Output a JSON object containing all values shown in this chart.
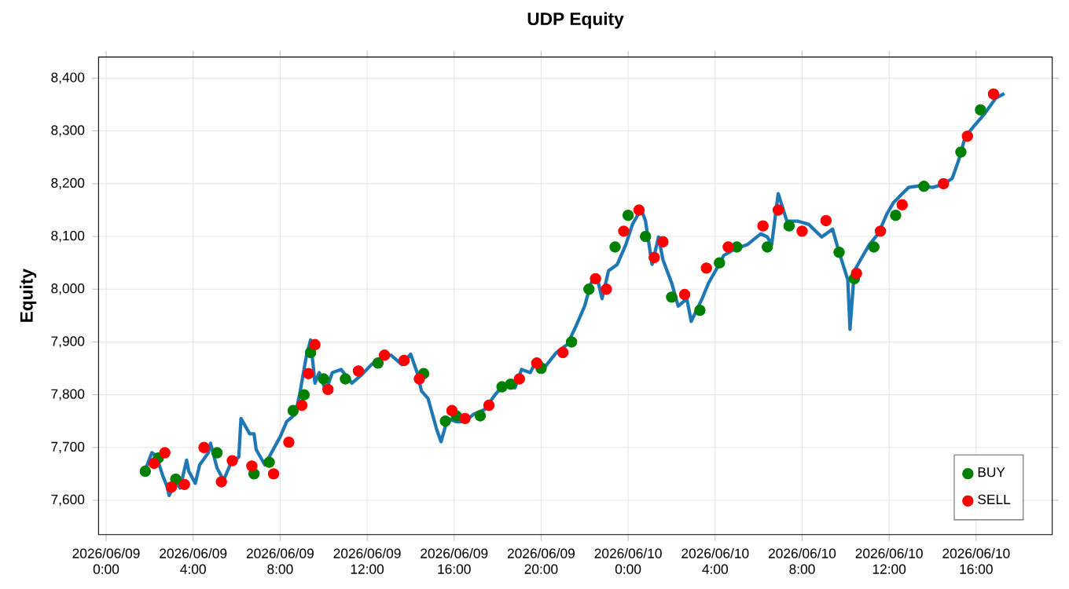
{
  "chart_data": {
    "type": "line",
    "title": "UDP Equity",
    "ylabel": "Equity",
    "xlim": [
      "2026-06-08T23:39",
      "2026-06-10T19:30"
    ],
    "ylim": [
      7535,
      8440
    ],
    "xticks": [
      {
        "value": "2026-06-09T00:00",
        "label": "2026/06/09 0:00"
      },
      {
        "value": "2026-06-09T04:00",
        "label": "2026/06/09 4:00"
      },
      {
        "value": "2026-06-09T08:00",
        "label": "2026/06/09 8:00"
      },
      {
        "value": "2026-06-09T12:00",
        "label": "2026/06/09 12:00"
      },
      {
        "value": "2026-06-09T16:00",
        "label": "2026/06/09 16:00"
      },
      {
        "value": "2026-06-09T20:00",
        "label": "2026/06/09 20:00"
      },
      {
        "value": "2026-06-10T00:00",
        "label": "2026/06/10 0:00"
      },
      {
        "value": "2026-06-10T04:00",
        "label": "2026/06/10 4:00"
      },
      {
        "value": "2026-06-10T08:00",
        "label": "2026/06/10 8:00"
      },
      {
        "value": "2026-06-10T12:00",
        "label": "2026/06/10 12:00"
      },
      {
        "value": "2026-06-10T16:00",
        "label": "2026/06/10 16:00"
      }
    ],
    "yticks": [
      {
        "value": 7600,
        "label": "7,600"
      },
      {
        "value": 7700,
        "label": "7,700"
      },
      {
        "value": 7800,
        "label": "7,800"
      },
      {
        "value": 7900,
        "label": "7,900"
      },
      {
        "value": 8000,
        "label": "8,000"
      },
      {
        "value": 8100,
        "label": "8,100"
      },
      {
        "value": 8200,
        "label": "8,200"
      },
      {
        "value": 8300,
        "label": "8,300"
      },
      {
        "value": 8400,
        "label": "8,400"
      }
    ],
    "grid": true,
    "legend": "bottom right",
    "series": [
      {
        "type": "line",
        "marker": "none",
        "color": "#1f77b4",
        "x": [
          "2026-06-09T01:50",
          "2026-06-09T02:06",
          "2026-06-09T02:18",
          "2026-06-09T02:36",
          "2026-06-09T02:48",
          "2026-06-09T02:54",
          "2026-06-09T03:12",
          "2026-06-09T03:24",
          "2026-06-09T03:42",
          "2026-06-09T03:48",
          "2026-06-09T04:06",
          "2026-06-09T04:18",
          "2026-06-09T04:42",
          "2026-06-09T04:48",
          "2026-06-09T05:06",
          "2026-06-09T05:24",
          "2026-06-09T05:42",
          "2026-06-09T06:06",
          "2026-06-09T06:12",
          "2026-06-09T06:36",
          "2026-06-09T06:48",
          "2026-06-09T06:54",
          "2026-06-09T07:18",
          "2026-06-09T07:36",
          "2026-06-09T08:00",
          "2026-06-09T08:18",
          "2026-06-09T08:42",
          "2026-06-09T08:54",
          "2026-06-09T09:12",
          "2026-06-09T09:24",
          "2026-06-09T09:36",
          "2026-06-09T09:48",
          "2026-06-09T10:06",
          "2026-06-09T10:24",
          "2026-06-09T10:48",
          "2026-06-09T11:18",
          "2026-06-09T11:42",
          "2026-06-09T12:12",
          "2026-06-09T12:42",
          "2026-06-09T13:06",
          "2026-06-09T13:36",
          "2026-06-09T14:00",
          "2026-06-09T14:18",
          "2026-06-09T14:30",
          "2026-06-09T14:48",
          "2026-06-09T15:12",
          "2026-06-09T15:24",
          "2026-06-09T15:42",
          "2026-06-09T16:06",
          "2026-06-09T16:30",
          "2026-06-09T16:54",
          "2026-06-09T17:24",
          "2026-06-09T17:54",
          "2026-06-09T18:18",
          "2026-06-09T18:48",
          "2026-06-09T19:06",
          "2026-06-09T19:30",
          "2026-06-09T19:48",
          "2026-06-09T20:12",
          "2026-06-09T20:42",
          "2026-06-09T21:12",
          "2026-06-09T21:36",
          "2026-06-09T22:00",
          "2026-06-09T22:18",
          "2026-06-09T22:36",
          "2026-06-09T22:48",
          "2026-06-09T23:06",
          "2026-06-09T23:30",
          "2026-06-09T23:54",
          "2026-06-10T00:12",
          "2026-06-10T00:36",
          "2026-06-10T00:48",
          "2026-06-10T01:06",
          "2026-06-10T01:24",
          "2026-06-10T01:36",
          "2026-06-10T02:00",
          "2026-06-10T02:18",
          "2026-06-10T02:42",
          "2026-06-10T02:54",
          "2026-06-10T03:24",
          "2026-06-10T03:42",
          "2026-06-10T04:06",
          "2026-06-10T04:24",
          "2026-06-10T04:54",
          "2026-06-10T05:30",
          "2026-06-10T06:06",
          "2026-06-10T06:24",
          "2026-06-10T06:36",
          "2026-06-10T06:54",
          "2026-06-10T07:18",
          "2026-06-10T07:48",
          "2026-06-10T08:18",
          "2026-06-10T08:54",
          "2026-06-10T09:24",
          "2026-06-10T09:42",
          "2026-06-10T10:06",
          "2026-06-10T10:12",
          "2026-06-10T10:24",
          "2026-06-10T10:48",
          "2026-06-10T11:06",
          "2026-06-10T11:30",
          "2026-06-10T11:54",
          "2026-06-10T12:12",
          "2026-06-10T12:36",
          "2026-06-10T12:54",
          "2026-06-10T13:24",
          "2026-06-10T14:00",
          "2026-06-10T14:30",
          "2026-06-10T14:54",
          "2026-06-10T15:12",
          "2026-06-10T15:30",
          "2026-06-10T15:54",
          "2026-06-10T16:24",
          "2026-06-10T16:54",
          "2026-06-10T17:18"
        ],
        "values": [
          7661,
          7690,
          7685,
          7647,
          7626,
          7609,
          7635,
          7623,
          7676,
          7655,
          7632,
          7667,
          7690,
          7708,
          7661,
          7638,
          7667,
          7682,
          7755,
          7726,
          7726,
          7696,
          7667,
          7690,
          7720,
          7749,
          7763,
          7801,
          7872,
          7904,
          7822,
          7842,
          7807,
          7842,
          7848,
          7822,
          7836,
          7857,
          7872,
          7875,
          7857,
          7877,
          7842,
          7807,
          7793,
          7734,
          7711,
          7755,
          7749,
          7749,
          7763,
          7772,
          7801,
          7819,
          7813,
          7848,
          7842,
          7866,
          7854,
          7880,
          7895,
          7930,
          7968,
          8012,
          8018,
          7982,
          8035,
          8047,
          8085,
          8123,
          8152,
          8129,
          8047,
          8099,
          8056,
          8012,
          7968,
          7982,
          7939,
          7982,
          8012,
          8041,
          8064,
          8076,
          8085,
          8105,
          8099,
          8085,
          8181,
          8129,
          8129,
          8123,
          8099,
          8114,
          8070,
          8018,
          7924,
          8035,
          8064,
          8085,
          8105,
          8143,
          8164,
          8181,
          8193,
          8196,
          8193,
          8199,
          8210,
          8245,
          8289,
          8309,
          8333,
          8362,
          8371
        ]
      },
      {
        "type": "scatter",
        "marker": "circle",
        "name": "BUY",
        "color": "#008000",
        "x": [
          "2026-06-09T01:48",
          "2026-06-09T02:24",
          "2026-06-09T03:12",
          "2026-06-09T05:06",
          "2026-06-09T06:48",
          "2026-06-09T07:30",
          "2026-06-09T08:36",
          "2026-06-09T09:06",
          "2026-06-09T09:24",
          "2026-06-09T10:00",
          "2026-06-09T11:00",
          "2026-06-09T12:30",
          "2026-06-09T14:36",
          "2026-06-09T15:36",
          "2026-06-09T16:06",
          "2026-06-09T17:12",
          "2026-06-09T18:12",
          "2026-06-09T18:36",
          "2026-06-09T20:00",
          "2026-06-09T21:24",
          "2026-06-09T22:12",
          "2026-06-09T23:24",
          "2026-06-10T00:00",
          "2026-06-10T00:48",
          "2026-06-10T02:00",
          "2026-06-10T03:18",
          "2026-06-10T04:12",
          "2026-06-10T05:00",
          "2026-06-10T06:24",
          "2026-06-10T07:24",
          "2026-06-10T09:42",
          "2026-06-10T10:24",
          "2026-06-10T11:18",
          "2026-06-10T12:18",
          "2026-06-10T13:36",
          "2026-06-10T15:18",
          "2026-06-10T16:12"
        ],
        "values": [
          7655,
          7680,
          7640,
          7690,
          7650,
          7672,
          7770,
          7800,
          7880,
          7830,
          7830,
          7860,
          7840,
          7750,
          7760,
          7760,
          7815,
          7820,
          7850,
          7900,
          8000,
          8080,
          8140,
          8100,
          7985,
          7960,
          8050,
          8080,
          8080,
          8120,
          8070,
          8020,
          8080,
          8140,
          8195,
          8260,
          8340
        ]
      },
      {
        "type": "scatter",
        "marker": "circle",
        "name": "SELL",
        "color": "#ff0000",
        "x": [
          "2026-06-09T02:12",
          "2026-06-09T02:42",
          "2026-06-09T03:00",
          "2026-06-09T03:36",
          "2026-06-09T04:30",
          "2026-06-09T05:18",
          "2026-06-09T05:48",
          "2026-06-09T06:42",
          "2026-06-09T07:42",
          "2026-06-09T08:24",
          "2026-06-09T09:00",
          "2026-06-09T09:18",
          "2026-06-09T09:36",
          "2026-06-09T10:12",
          "2026-06-09T11:36",
          "2026-06-09T12:48",
          "2026-06-09T13:42",
          "2026-06-09T14:24",
          "2026-06-09T15:54",
          "2026-06-09T16:30",
          "2026-06-09T17:36",
          "2026-06-09T19:00",
          "2026-06-09T19:48",
          "2026-06-09T21:00",
          "2026-06-09T22:30",
          "2026-06-09T23:00",
          "2026-06-09T23:48",
          "2026-06-10T00:30",
          "2026-06-10T01:12",
          "2026-06-10T01:36",
          "2026-06-10T02:36",
          "2026-06-10T03:36",
          "2026-06-10T04:36",
          "2026-06-10T06:12",
          "2026-06-10T06:54",
          "2026-06-10T08:00",
          "2026-06-10T09:06",
          "2026-06-10T10:30",
          "2026-06-10T11:36",
          "2026-06-10T12:36",
          "2026-06-10T14:30",
          "2026-06-10T15:36",
          "2026-06-10T16:48"
        ],
        "values": [
          7670,
          7690,
          7625,
          7630,
          7700,
          7635,
          7675,
          7665,
          7650,
          7710,
          7780,
          7840,
          7895,
          7810,
          7845,
          7875,
          7865,
          7830,
          7770,
          7755,
          7780,
          7830,
          7860,
          7880,
          8020,
          8000,
          8110,
          8150,
          8060,
          8090,
          7990,
          8040,
          8080,
          8120,
          8150,
          8110,
          8130,
          8030,
          8110,
          8160,
          8200,
          8290,
          8370
        ]
      }
    ]
  }
}
